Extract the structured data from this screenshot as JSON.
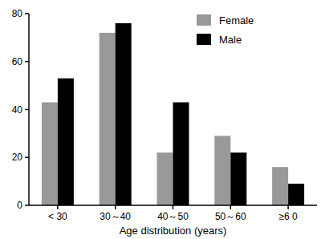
{
  "chart_data": {
    "type": "bar",
    "x_label": "Age distribution (years)",
    "categories": [
      "< 30",
      "30～40",
      "40～50",
      "50～60",
      "≥6 0"
    ],
    "series": [
      {
        "name": "Female",
        "color": "#999999",
        "values": [
          43,
          72,
          22,
          29,
          16
        ]
      },
      {
        "name": "Male",
        "color": "#000000",
        "values": [
          53,
          76,
          43,
          22,
          9
        ]
      }
    ],
    "ylim": [
      0,
      80
    ],
    "yticks": [
      0,
      20,
      40,
      60,
      80
    ],
    "grid": false,
    "legend": "upper right"
  }
}
